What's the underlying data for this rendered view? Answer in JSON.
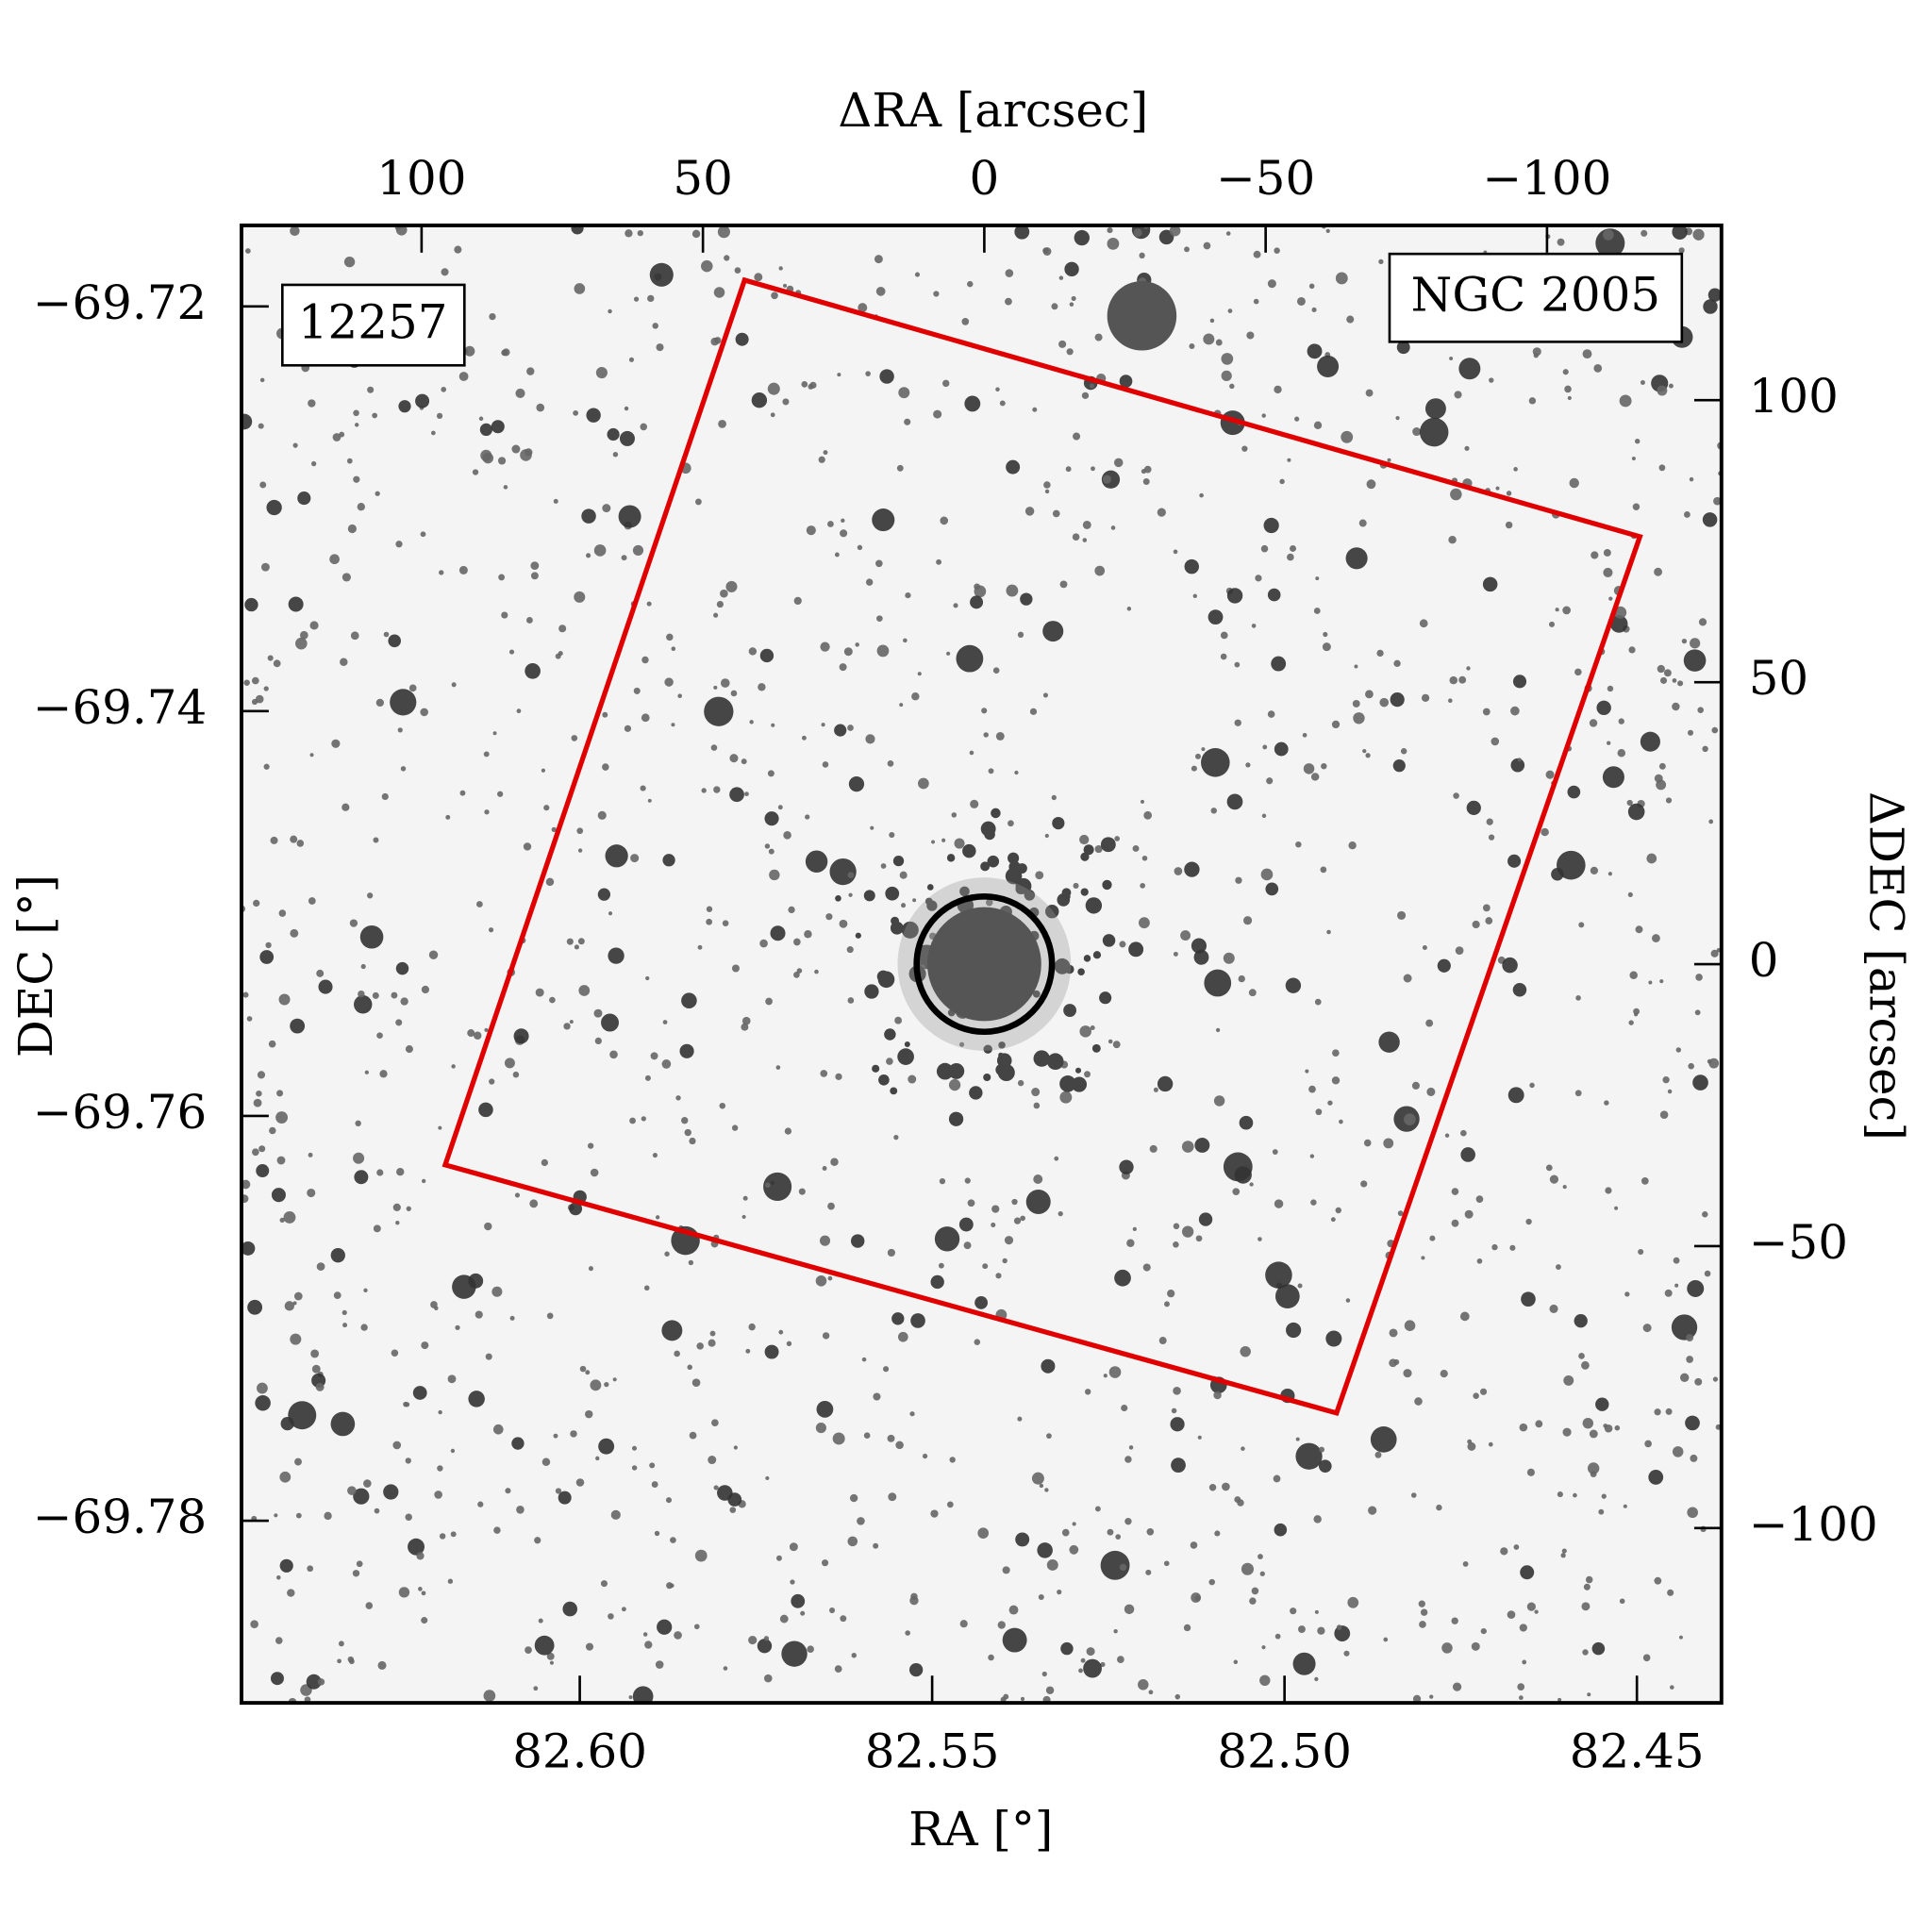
{
  "chart_data": {
    "type": "sky_image",
    "xlabel": "RA [°]",
    "ylabel": "DEC [°]",
    "x2label": "ΔRA [arcsec]",
    "y2label": "ΔDEC [arcsec]",
    "xlim": [
      82.648,
      82.438
    ],
    "xticks": [
      {
        "value": 82.6,
        "label": "82.60"
      },
      {
        "value": 82.55,
        "label": "82.55"
      },
      {
        "value": 82.5,
        "label": "82.50"
      },
      {
        "value": 82.45,
        "label": "82.45"
      }
    ],
    "ylim": [
      -69.789,
      -69.716
    ],
    "yticks": [
      {
        "value": -69.72,
        "label": "−69.72"
      },
      {
        "value": -69.74,
        "label": "−69.74"
      },
      {
        "value": -69.76,
        "label": "−69.76"
      },
      {
        "value": -69.78,
        "label": "−69.78"
      }
    ],
    "x2lim": [
      132,
      -131
    ],
    "x2ticks": [
      100,
      50,
      0,
      {
        "value": -50,
        "label": "−50"
      },
      {
        "value": -100,
        "label": "−100"
      }
    ],
    "y2lim": [
      -131,
      131
    ],
    "y2ticks": [
      100,
      50,
      0,
      {
        "value": -50,
        "label": "−50"
      },
      {
        "value": -100,
        "label": "−100"
      }
    ],
    "annotations": [
      {
        "text": "12257",
        "color": "#e00000"
      },
      {
        "text": "NGC 2005",
        "color": "#000000"
      }
    ],
    "footprint": {
      "color": "#e00000",
      "x": [
        42.6,
        -116.5,
        -62.6,
        95.8
      ],
      "y": [
        121.3,
        75.8,
        -79.6,
        -35.6
      ]
    },
    "aperture": {
      "color": "#000000",
      "x": 0,
      "y": 0,
      "radius": 12
    }
  }
}
